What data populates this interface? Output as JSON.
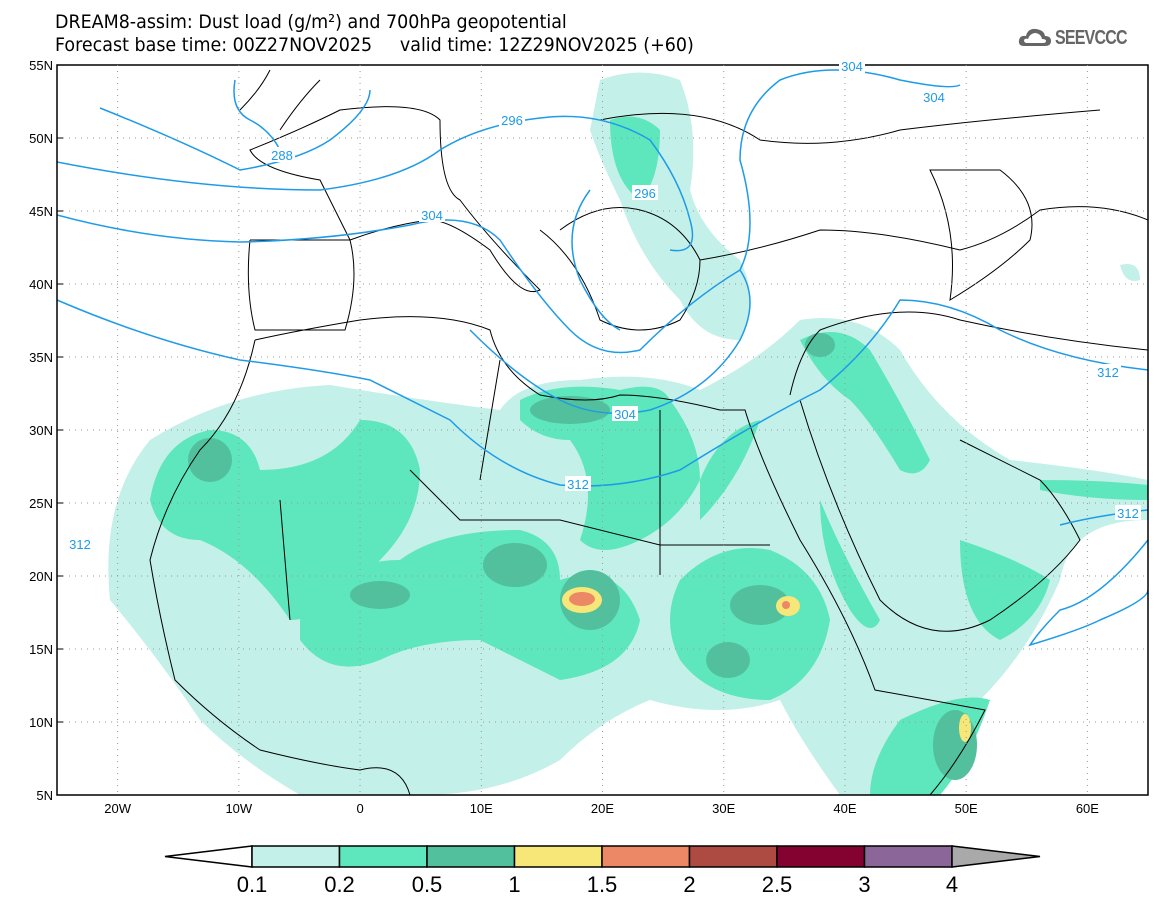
{
  "header": {
    "title_line1": "DREAM8-assim: Dust load (g/m²) and 700hPa geopotential",
    "title_line2": "Forecast base time: 00Z27NOV2025     valid time: 12Z29NOV2025 (+60)",
    "logo_text": "SEEVCCC"
  },
  "map": {
    "lat_labels": [
      "55N",
      "50N",
      "45N",
      "40N",
      "35N",
      "30N",
      "25N",
      "20N",
      "15N",
      "10N",
      "5N"
    ],
    "lon_labels": [
      "20W",
      "10W",
      "0",
      "10E",
      "20E",
      "30E",
      "40E",
      "50E",
      "60E"
    ],
    "contour_labels": [
      "288",
      "296",
      "296",
      "304",
      "304",
      "304",
      "304",
      "312",
      "312",
      "312",
      "312"
    ],
    "contour_color": "#1e9be8"
  },
  "colorbar": {
    "labels": [
      "0.1",
      "0.2",
      "0.5",
      "1",
      "1.5",
      "2",
      "2.5",
      "3",
      "4"
    ],
    "colors": [
      "#c3f0e8",
      "#5ee6bd",
      "#52c09d",
      "#f7e678",
      "#ec8866",
      "#ad4b43",
      "#830230",
      "#8b6699",
      "#a9a9a9"
    ]
  }
}
